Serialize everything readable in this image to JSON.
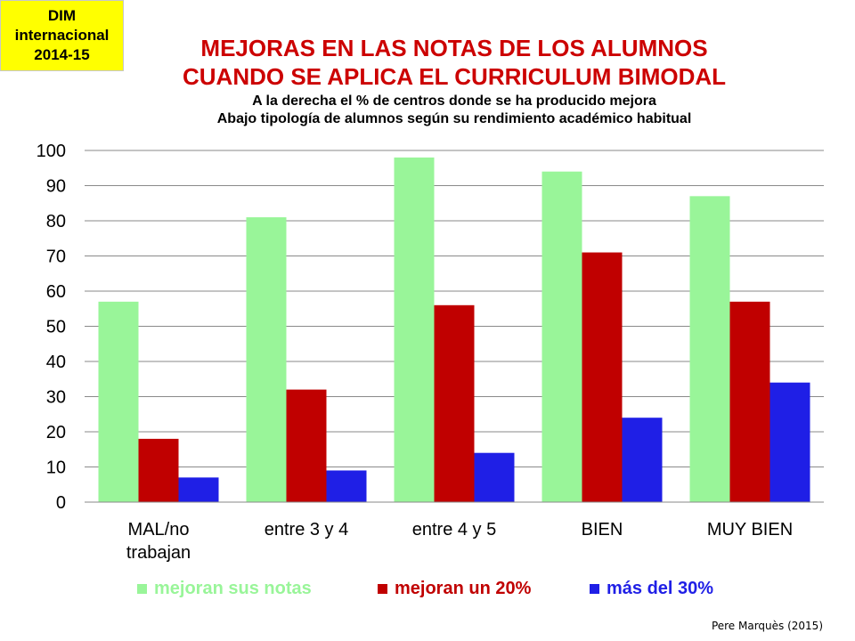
{
  "badge": {
    "line1": "DIM",
    "line2": "internacional",
    "line3": "2014-15"
  },
  "header": {
    "title_line1": "MEJORAS EN LAS NOTAS DE LOS ALUMNOS",
    "title_line2": "CUANDO  SE APLICA EL CURRICULUM BIMODAL",
    "subtitle_line1": "A la derecha el % de centros donde se ha producido mejora",
    "subtitle_line2": "Abajo tipología de alumnos según su rendimiento académico  habitual"
  },
  "credit": "Pere Marquès (2015)",
  "colors": {
    "green": "#99f599",
    "red": "#c00000",
    "blue": "#1f1fe6"
  },
  "chart_data": {
    "type": "bar",
    "categories": [
      [
        "MAL/no",
        "trabajan"
      ],
      [
        "entre 3 y 4"
      ],
      [
        "entre 4 y 5"
      ],
      [
        "BIEN"
      ],
      [
        "MUY BIEN"
      ]
    ],
    "series": [
      {
        "name": "mejoran sus notas",
        "values": [
          57,
          81,
          98,
          94,
          87
        ]
      },
      {
        "name": "mejoran un 20%",
        "values": [
          18,
          32,
          56,
          71,
          57
        ]
      },
      {
        "name": "más del 30%",
        "values": [
          7,
          9,
          14,
          24,
          34
        ]
      }
    ],
    "ylim": [
      0,
      100
    ],
    "yticks": [
      0,
      10,
      20,
      30,
      40,
      50,
      60,
      70,
      80,
      90,
      100
    ],
    "grid": true,
    "legend": "bottom"
  }
}
